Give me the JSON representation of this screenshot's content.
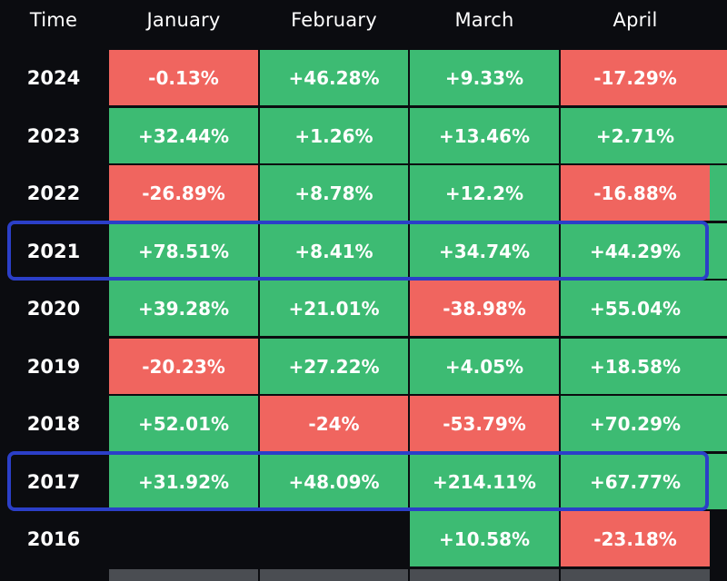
{
  "colors": {
    "positive": "#3dbb73",
    "negative": "#f0655f",
    "edge_positive": "#3dbb73",
    "highlight": "#2b3fc8",
    "footer": "#4a4d52"
  },
  "header": {
    "time_label": "Time",
    "months": [
      "January",
      "February",
      "March",
      "April"
    ]
  },
  "chart_data": {
    "type": "table",
    "columns": [
      "Time",
      "January",
      "February",
      "March",
      "April"
    ],
    "rows": [
      {
        "year": "2024",
        "values": [
          "-0.13%",
          "+46.28%",
          "+9.33%",
          "-17.29%"
        ]
      },
      {
        "year": "2023",
        "values": [
          "+32.44%",
          "+1.26%",
          "+13.46%",
          "+2.71%"
        ]
      },
      {
        "year": "2022",
        "values": [
          "-26.89%",
          "+8.78%",
          "+12.2%",
          "-16.88%"
        ]
      },
      {
        "year": "2021",
        "values": [
          "+78.51%",
          "+8.41%",
          "+34.74%",
          "+44.29%"
        ]
      },
      {
        "year": "2020",
        "values": [
          "+39.28%",
          "+21.01%",
          "-38.98%",
          "+55.04%"
        ]
      },
      {
        "year": "2019",
        "values": [
          "-20.23%",
          "+27.22%",
          "+4.05%",
          "+18.58%"
        ]
      },
      {
        "year": "2018",
        "values": [
          "+52.01%",
          "-24%",
          "-53.79%",
          "+70.29%"
        ]
      },
      {
        "year": "2017",
        "values": [
          "+31.92%",
          "+48.09%",
          "+214.11%",
          "+67.77%"
        ]
      },
      {
        "year": "2016",
        "values": [
          "",
          "",
          "+10.58%",
          "-23.18%"
        ]
      }
    ],
    "highlighted_years": [
      "2021",
      "2017"
    ],
    "edge_column_signs": [
      "negative",
      "positive",
      "positive",
      "positive",
      "positive",
      "positive",
      "positive",
      "positive",
      "positive"
    ]
  }
}
